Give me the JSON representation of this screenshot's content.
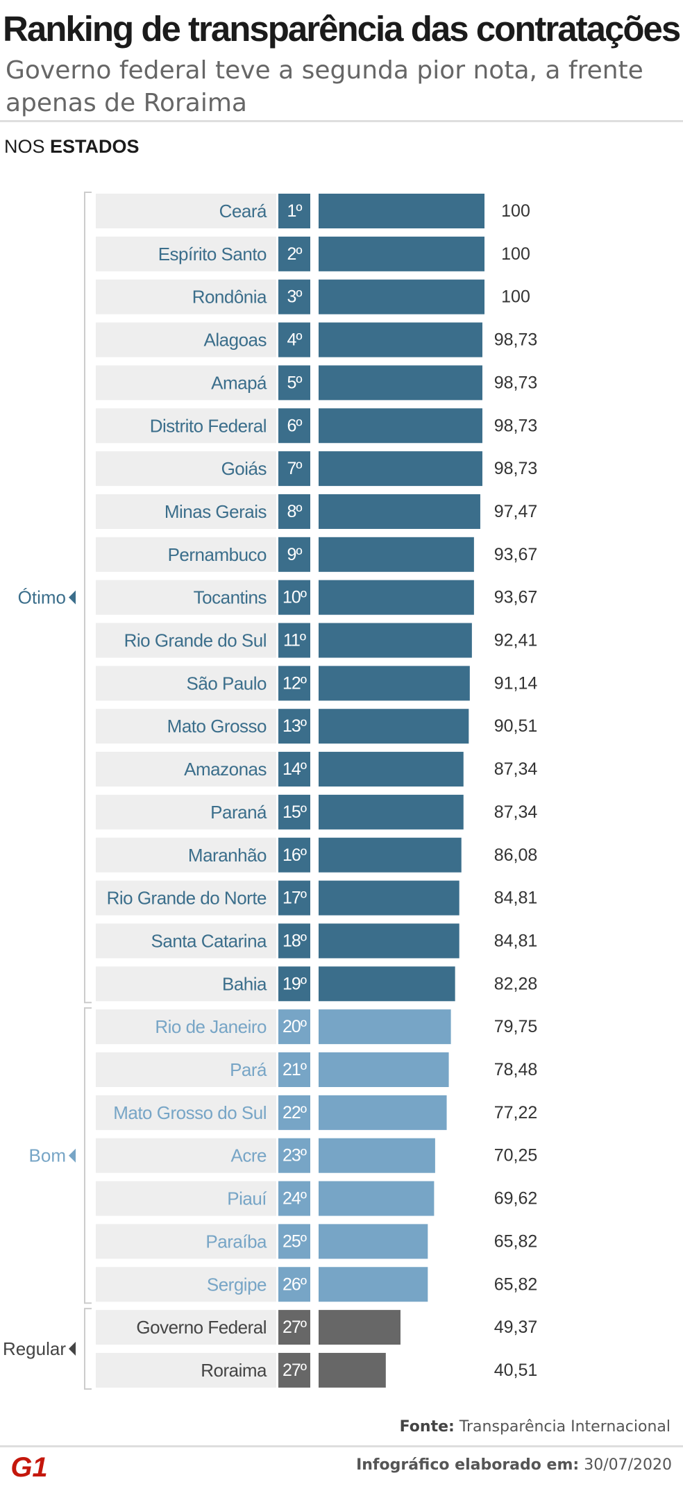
{
  "header": {
    "title": "Ranking de transparência das contratações",
    "subtitle": "Governo federal teve a segunda pior nota, a frente apenas de Roraima",
    "section_prefix": "NOS ",
    "section_bold": "ESTADOS"
  },
  "colors": {
    "otimo": "#3b6e8b",
    "bom": "#77a5c6",
    "regular": "#676767",
    "label_bg": "#eeeeee",
    "bracket": "#cccccc"
  },
  "chart_data": {
    "type": "bar",
    "orientation": "horizontal",
    "xlim": [
      0,
      100
    ],
    "groups": [
      {
        "name": "Ótimo",
        "key": "otimo"
      },
      {
        "name": "Bom",
        "key": "bom"
      },
      {
        "name": "Regular",
        "key": "regular"
      }
    ],
    "rows": [
      {
        "state": "Ceará",
        "rank": "1º",
        "value": 100,
        "label": "100",
        "group": "otimo"
      },
      {
        "state": "Espírito Santo",
        "rank": "2º",
        "value": 100,
        "label": "100",
        "group": "otimo"
      },
      {
        "state": "Rondônia",
        "rank": "3º",
        "value": 100,
        "label": "100",
        "group": "otimo"
      },
      {
        "state": "Alagoas",
        "rank": "4º",
        "value": 98.73,
        "label": "98,73",
        "group": "otimo"
      },
      {
        "state": "Amapá",
        "rank": "5º",
        "value": 98.73,
        "label": "98,73",
        "group": "otimo"
      },
      {
        "state": "Distrito Federal",
        "rank": "6º",
        "value": 98.73,
        "label": "98,73",
        "group": "otimo"
      },
      {
        "state": "Goiás",
        "rank": "7º",
        "value": 98.73,
        "label": "98,73",
        "group": "otimo"
      },
      {
        "state": "Minas Gerais",
        "rank": "8º",
        "value": 97.47,
        "label": "97,47",
        "group": "otimo"
      },
      {
        "state": "Pernambuco",
        "rank": "9º",
        "value": 93.67,
        "label": "93,67",
        "group": "otimo"
      },
      {
        "state": "Tocantins",
        "rank": "10º",
        "value": 93.67,
        "label": "93,67",
        "group": "otimo"
      },
      {
        "state": "Rio Grande do Sul",
        "rank": "11º",
        "value": 92.41,
        "label": "92,41",
        "group": "otimo"
      },
      {
        "state": "São Paulo",
        "rank": "12º",
        "value": 91.14,
        "label": "91,14",
        "group": "otimo"
      },
      {
        "state": "Mato Grosso",
        "rank": "13º",
        "value": 90.51,
        "label": "90,51",
        "group": "otimo"
      },
      {
        "state": "Amazonas",
        "rank": "14º",
        "value": 87.34,
        "label": "87,34",
        "group": "otimo"
      },
      {
        "state": "Paraná",
        "rank": "15º",
        "value": 87.34,
        "label": "87,34",
        "group": "otimo"
      },
      {
        "state": "Maranhão",
        "rank": "16º",
        "value": 86.08,
        "label": "86,08",
        "group": "otimo"
      },
      {
        "state": "Rio Grande do Norte",
        "rank": "17º",
        "value": 84.81,
        "label": "84,81",
        "group": "otimo"
      },
      {
        "state": "Santa Catarina",
        "rank": "18º",
        "value": 84.81,
        "label": "84,81",
        "group": "otimo"
      },
      {
        "state": "Bahia",
        "rank": "19º",
        "value": 82.28,
        "label": "82,28",
        "group": "otimo"
      },
      {
        "state": "Rio de Janeiro",
        "rank": "20º",
        "value": 79.75,
        "label": "79,75",
        "group": "bom"
      },
      {
        "state": "Pará",
        "rank": "21º",
        "value": 78.48,
        "label": "78,48",
        "group": "bom"
      },
      {
        "state": "Mato Grosso do Sul",
        "rank": "22º",
        "value": 77.22,
        "label": "77,22",
        "group": "bom"
      },
      {
        "state": "Acre",
        "rank": "23º",
        "value": 70.25,
        "label": "70,25",
        "group": "bom"
      },
      {
        "state": "Piauí",
        "rank": "24º",
        "value": 69.62,
        "label": "69,62",
        "group": "bom"
      },
      {
        "state": "Paraíba",
        "rank": "25º",
        "value": 65.82,
        "label": "65,82",
        "group": "bom"
      },
      {
        "state": "Sergipe",
        "rank": "26º",
        "value": 65.82,
        "label": "65,82",
        "group": "bom"
      },
      {
        "state": "Governo Federal",
        "rank": "27º",
        "value": 49.37,
        "label": "49,37",
        "group": "regular"
      },
      {
        "state": "Roraima",
        "rank": "27º",
        "value": 40.51,
        "label": "40,51",
        "group": "regular"
      }
    ]
  },
  "footer": {
    "source_label": "Fonte:",
    "source_value": " Transparência Internacional",
    "made_label": "Infográfico elaborado em:",
    "made_date": " 30/07/2020",
    "logo_text": "G1"
  }
}
